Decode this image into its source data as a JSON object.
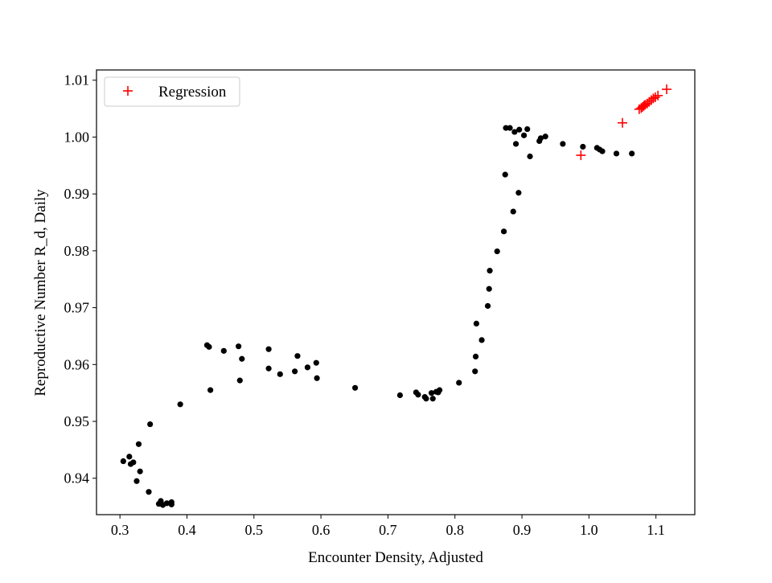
{
  "chart_data": {
    "type": "scatter",
    "xlabel": "Encounter Density, Adjusted",
    "ylabel": "Reproductive Number R_d, Daily",
    "xlim": [
      0.265,
      1.158
    ],
    "ylim": [
      0.9336,
      1.0118
    ],
    "grid": false,
    "legend_position": "top-left",
    "x_ticks": [
      {
        "value": 0.3,
        "label": "0.3"
      },
      {
        "value": 0.4,
        "label": "0.4"
      },
      {
        "value": 0.5,
        "label": "0.5"
      },
      {
        "value": 0.6,
        "label": "0.6"
      },
      {
        "value": 0.7,
        "label": "0.7"
      },
      {
        "value": 0.8,
        "label": "0.8"
      },
      {
        "value": 0.9,
        "label": "0.9"
      },
      {
        "value": 1.0,
        "label": "1.0"
      },
      {
        "value": 1.1,
        "label": "1.1"
      }
    ],
    "y_ticks": [
      {
        "value": 0.94,
        "label": "0.94"
      },
      {
        "value": 0.95,
        "label": "0.95"
      },
      {
        "value": 0.96,
        "label": "0.96"
      },
      {
        "value": 0.97,
        "label": "0.97"
      },
      {
        "value": 0.98,
        "label": "0.98"
      },
      {
        "value": 0.99,
        "label": "0.99"
      },
      {
        "value": 1.0,
        "label": "1.00"
      },
      {
        "value": 1.01,
        "label": "1.01"
      }
    ],
    "series": [
      {
        "marker": "dot",
        "color": "#000000",
        "points": [
          [
            0.305,
            0.943
          ],
          [
            0.314,
            0.9438
          ],
          [
            0.316,
            0.9425
          ],
          [
            0.32,
            0.9428
          ],
          [
            0.325,
            0.9395
          ],
          [
            0.328,
            0.946
          ],
          [
            0.33,
            0.9412
          ],
          [
            0.343,
            0.9376
          ],
          [
            0.345,
            0.9495
          ],
          [
            0.358,
            0.9355
          ],
          [
            0.361,
            0.936
          ],
          [
            0.364,
            0.9353
          ],
          [
            0.37,
            0.9356
          ],
          [
            0.377,
            0.9354
          ],
          [
            0.377,
            0.9358
          ],
          [
            0.39,
            0.953
          ],
          [
            0.43,
            0.9634
          ],
          [
            0.433,
            0.9631
          ],
          [
            0.435,
            0.9555
          ],
          [
            0.455,
            0.9624
          ],
          [
            0.477,
            0.9632
          ],
          [
            0.479,
            0.9572
          ],
          [
            0.482,
            0.961
          ],
          [
            0.522,
            0.9627
          ],
          [
            0.522,
            0.9593
          ],
          [
            0.539,
            0.9583
          ],
          [
            0.561,
            0.9588
          ],
          [
            0.565,
            0.9615
          ],
          [
            0.58,
            0.9595
          ],
          [
            0.593,
            0.9603
          ],
          [
            0.594,
            0.9576
          ],
          [
            0.651,
            0.9559
          ],
          [
            0.718,
            0.9546
          ],
          [
            0.742,
            0.9551
          ],
          [
            0.745,
            0.9547
          ],
          [
            0.755,
            0.9543
          ],
          [
            0.757,
            0.954
          ],
          [
            0.765,
            0.955
          ],
          [
            0.767,
            0.954
          ],
          [
            0.772,
            0.9552
          ],
          [
            0.775,
            0.9551
          ],
          [
            0.777,
            0.9555
          ],
          [
            0.806,
            0.9568
          ],
          [
            0.83,
            0.9588
          ],
          [
            0.831,
            0.9614
          ],
          [
            0.832,
            0.9672
          ],
          [
            0.84,
            0.9643
          ],
          [
            0.849,
            0.9703
          ],
          [
            0.851,
            0.9733
          ],
          [
            0.852,
            0.9765
          ],
          [
            0.863,
            0.9799
          ],
          [
            0.873,
            0.9834
          ],
          [
            0.875,
            0.9934
          ],
          [
            0.876,
            1.0016
          ],
          [
            0.882,
            1.0016
          ],
          [
            0.887,
            0.9869
          ],
          [
            0.889,
            1.0009
          ],
          [
            0.891,
            0.9988
          ],
          [
            0.895,
            0.9902
          ],
          [
            0.896,
            1.0013
          ],
          [
            0.903,
            1.0003
          ],
          [
            0.908,
            1.0014
          ],
          [
            0.912,
            0.9966
          ],
          [
            0.926,
            0.9993
          ],
          [
            0.928,
            0.9998
          ],
          [
            0.935,
            1.0001
          ],
          [
            0.961,
            0.9988
          ],
          [
            0.991,
            0.9983
          ],
          [
            1.012,
            0.9981
          ],
          [
            1.016,
            0.9978
          ],
          [
            1.02,
            0.9975
          ],
          [
            1.041,
            0.9971
          ],
          [
            1.064,
            0.9971
          ]
        ]
      },
      {
        "name": "Regression",
        "marker": "plus",
        "color": "#ff0000",
        "points": [
          [
            0.988,
            0.9968
          ],
          [
            1.05,
            1.0025
          ],
          [
            1.075,
            1.0049
          ],
          [
            1.078,
            1.0051
          ],
          [
            1.08,
            1.0053
          ],
          [
            1.082,
            1.0055
          ],
          [
            1.084,
            1.0057
          ],
          [
            1.087,
            1.0059
          ],
          [
            1.09,
            1.0062
          ],
          [
            1.093,
            1.0065
          ],
          [
            1.096,
            1.0068
          ],
          [
            1.099,
            1.007
          ],
          [
            1.103,
            1.0073
          ],
          [
            1.116,
            1.0084
          ]
        ]
      }
    ]
  }
}
